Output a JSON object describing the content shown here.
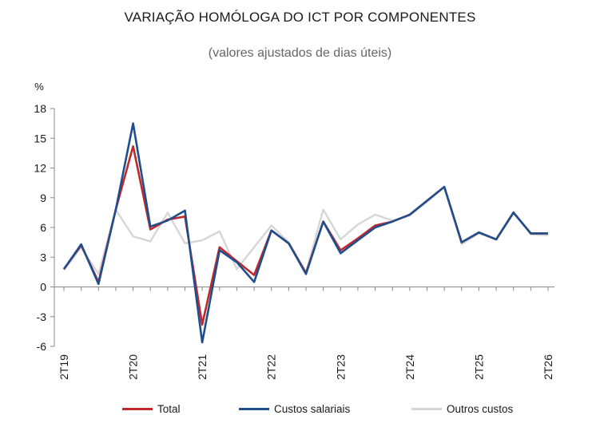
{
  "chart_data": {
    "type": "line",
    "title": "VARIAÇÃO HOMÓLOGA DO ICT POR COMPONENTES",
    "subtitle": "(valores ajustados de dias úteis)",
    "ylabel": "%",
    "ylim": [
      -6,
      18
    ],
    "yticks": [
      -6,
      -3,
      0,
      3,
      6,
      9,
      12,
      15,
      18
    ],
    "ytick_labels": [
      "-6",
      "-3",
      "0",
      "3",
      "6",
      "9",
      "12",
      "15",
      "18"
    ],
    "x": [
      "2T19",
      "3T19",
      "4T19",
      "1T20",
      "2T20",
      "3T20",
      "4T20",
      "1T21",
      "2T21",
      "3T21",
      "4T21",
      "1T22",
      "2T22",
      "3T22",
      "4T22",
      "1T23",
      "2T23",
      "3T23",
      "4T23",
      "1T24",
      "2T24",
      "3T24",
      "4T24",
      "1T25",
      "2T25",
      "3T25",
      "4T25",
      "1T26",
      "2T26"
    ],
    "xtick_labels": [
      "2T19",
      "2T20",
      "2T21",
      "2T22",
      "2T23",
      "2T24",
      "2T25",
      "2T26"
    ],
    "xtick_positions": [
      0,
      4,
      8,
      12,
      16,
      20,
      24,
      28
    ],
    "grid": false,
    "legend_position": "bottom",
    "series": [
      {
        "name": "Total",
        "color": "#c0282d",
        "values": [
          1.8,
          4.2,
          0.5,
          7.8,
          14.2,
          5.8,
          6.8,
          7.1,
          -3.8,
          4.0,
          2.6,
          1.2,
          5.7,
          4.4,
          1.4,
          6.6,
          3.7,
          4.9,
          6.2,
          6.6,
          7.3,
          8.7,
          10.1,
          4.5,
          5.5,
          4.8,
          7.5,
          5.4,
          5.4
        ]
      },
      {
        "name": "Custos salariais",
        "color": "#1f4e8c",
        "values": [
          1.8,
          4.3,
          0.3,
          7.8,
          16.5,
          6.1,
          6.7,
          7.7,
          -5.6,
          3.7,
          2.5,
          0.5,
          5.7,
          4.4,
          1.3,
          6.6,
          3.4,
          4.7,
          6.0,
          6.6,
          7.3,
          8.7,
          10.1,
          4.5,
          5.5,
          4.8,
          7.5,
          5.4,
          5.4
        ]
      },
      {
        "name": "Outros custos",
        "color": "#d6d6d6",
        "values": [
          1.7,
          4.0,
          1.3,
          7.8,
          5.1,
          4.6,
          7.5,
          4.4,
          4.7,
          5.6,
          1.8,
          4.0,
          6.2,
          4.5,
          1.5,
          7.8,
          4.8,
          6.3,
          7.3,
          6.7,
          7.2,
          8.6,
          10.1,
          4.3,
          5.4,
          4.8,
          7.6,
          5.3,
          5.2
        ]
      }
    ]
  }
}
